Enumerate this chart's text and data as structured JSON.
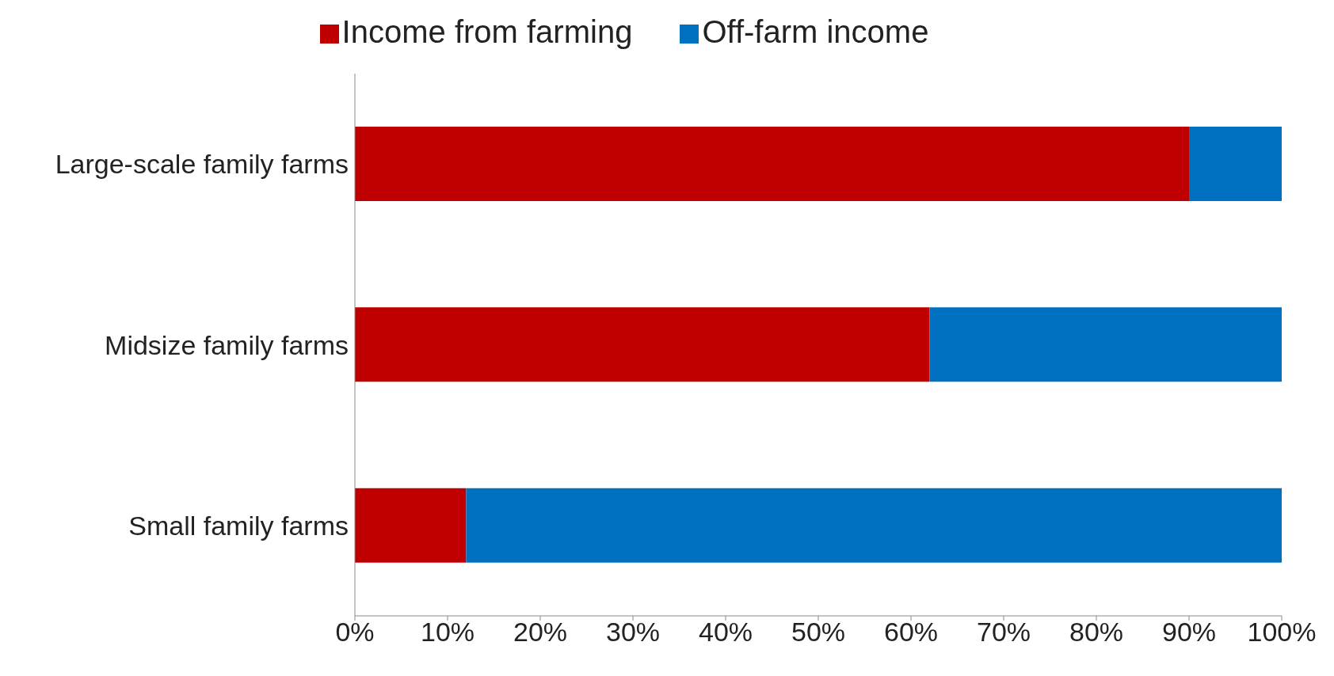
{
  "chart_data": {
    "type": "bar",
    "orientation": "horizontal",
    "stacked": true,
    "categories": [
      "Large-scale family farms",
      "Midsize family farms",
      "Small family farms"
    ],
    "series": [
      {
        "name": "Income from farming",
        "color": "#c00000",
        "values": [
          90,
          62,
          12
        ]
      },
      {
        "name": "Off-farm income",
        "color": "#0070c0",
        "values": [
          10,
          38,
          88
        ]
      }
    ],
    "xlim": [
      0,
      100
    ],
    "xticks": [
      {
        "value": 0,
        "label": "0%"
      },
      {
        "value": 10,
        "label": "10%"
      },
      {
        "value": 20,
        "label": "20%"
      },
      {
        "value": 30,
        "label": "30%"
      },
      {
        "value": 40,
        "label": "40%"
      },
      {
        "value": 50,
        "label": "50%"
      },
      {
        "value": 60,
        "label": "60%"
      },
      {
        "value": 70,
        "label": "70%"
      },
      {
        "value": 80,
        "label": "80%"
      },
      {
        "value": 90,
        "label": "90%"
      },
      {
        "value": 100,
        "label": "100%"
      }
    ],
    "legend": "top"
  }
}
